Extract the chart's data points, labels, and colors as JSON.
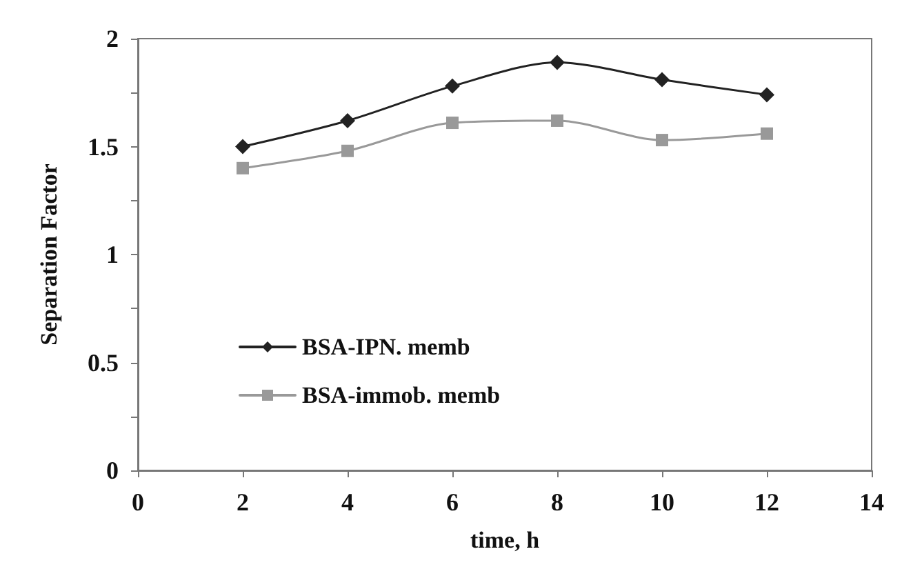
{
  "chart_data": {
    "type": "line",
    "xlabel": "time, h",
    "ylabel": "Separation Factor",
    "x": [
      2,
      4,
      6,
      8,
      10,
      12
    ],
    "series": [
      {
        "name": "BSA-IPN. memb",
        "color": "#222222",
        "marker": "diamond",
        "values": [
          1.5,
          1.62,
          1.78,
          1.89,
          1.81,
          1.74
        ]
      },
      {
        "name": "BSA-immob. memb",
        "color": "#999999",
        "marker": "square",
        "values": [
          1.4,
          1.48,
          1.61,
          1.62,
          1.53,
          1.56
        ]
      }
    ],
    "xlim": [
      0,
      14
    ],
    "xticks": [
      0,
      2,
      4,
      6,
      8,
      10,
      12,
      14
    ],
    "ylim": [
      0,
      2
    ],
    "yticks": [
      0,
      {
        "value": 0.25,
        "label": null
      },
      0.5,
      {
        "value": 0.75,
        "label": null
      },
      1,
      {
        "value": 1.25,
        "label": null
      },
      1.5,
      {
        "value": 1.75,
        "label": null
      },
      2
    ],
    "grid": false,
    "legend": "left",
    "line_style": "solid"
  }
}
